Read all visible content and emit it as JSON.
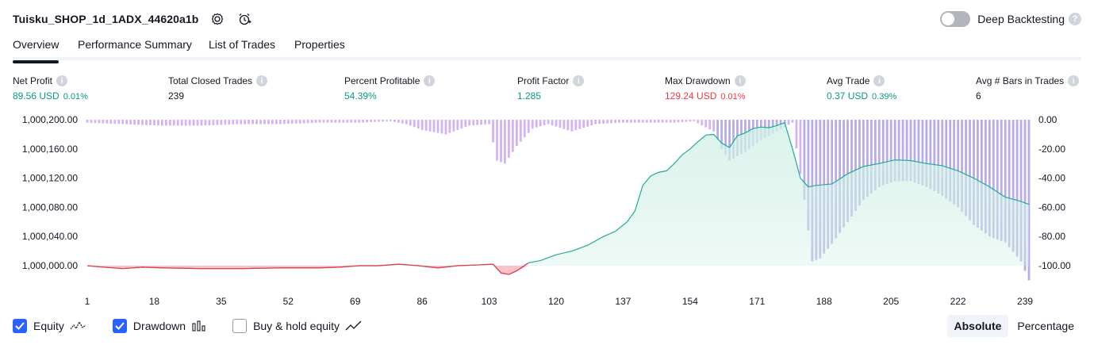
{
  "header": {
    "strategy_title": "Tuisku_SHOP_1d_1ADX_44620a1b",
    "settings_icon": "gear-icon",
    "alert_icon": "alarm-clock-plus-icon",
    "deep_backtesting_label": "Deep Backtesting",
    "deep_backtesting_enabled": false,
    "help_label": "?"
  },
  "tabs": [
    {
      "label": "Overview",
      "active": true
    },
    {
      "label": "Performance Summary",
      "active": false
    },
    {
      "label": "List of Trades",
      "active": false
    },
    {
      "label": "Properties",
      "active": false
    }
  ],
  "metrics": {
    "info_icon": "i",
    "net_profit": {
      "label": "Net Profit",
      "value": "89.56 USD",
      "pct": "0.01%"
    },
    "total_closed_trades": {
      "label": "Total Closed Trades",
      "value": "239"
    },
    "percent_profitable": {
      "label": "Percent Profitable",
      "value": "54.39%"
    },
    "profit_factor": {
      "label": "Profit Factor",
      "value": "1.285"
    },
    "max_drawdown": {
      "label": "Max Drawdown",
      "value": "129.24 USD",
      "pct": "0.01%"
    },
    "avg_trade": {
      "label": "Avg Trade",
      "value": "0.37 USD",
      "pct": "0.39%"
    },
    "avg_bars": {
      "label": "Avg # Bars in Trades",
      "value": "6"
    }
  },
  "colors": {
    "positive": "#089981",
    "negative": "#f23645",
    "equity_line": "#22ab94",
    "equity_fill": "#d1f0e6",
    "loss_fill": "#f7a9b0",
    "drawdown_bar": "#d4b3f2",
    "drawdown_bar_overlap": "#b6acea",
    "accent": "#2962ff"
  },
  "chart_data": {
    "type": "line",
    "x_ticks": [
      "1",
      "18",
      "35",
      "52",
      "69",
      "86",
      "103",
      "120",
      "137",
      "154",
      "171",
      "188",
      "205",
      "222",
      "239"
    ],
    "x_range": [
      1,
      240
    ],
    "left_axis": {
      "ticks": [
        "1,000,200.00",
        "1,000,160.00",
        "1,000,120.00",
        "1,000,080.00",
        "1,000,040.00",
        "1,000,000.00"
      ],
      "range": [
        1000000,
        1000200
      ],
      "baseline": 1000000
    },
    "right_axis": {
      "ticks": [
        "0.00",
        "-20.00",
        "-40.00",
        "-60.00",
        "-80.00",
        "-100.00"
      ],
      "range": [
        -100,
        0
      ]
    },
    "series": [
      {
        "name": "Equity",
        "type": "line",
        "points": [
          [
            1,
            1000000
          ],
          [
            5,
            999998
          ],
          [
            10,
            999996
          ],
          [
            15,
            999998
          ],
          [
            20,
            999997
          ],
          [
            30,
            999996
          ],
          [
            40,
            999996
          ],
          [
            50,
            999997
          ],
          [
            60,
            999997
          ],
          [
            65,
            999998
          ],
          [
            70,
            1000000
          ],
          [
            75,
            1000000
          ],
          [
            80,
            1000002
          ],
          [
            85,
            1000000
          ],
          [
            90,
            999997
          ],
          [
            95,
            1000000
          ],
          [
            100,
            1000001
          ],
          [
            104,
            1000002
          ],
          [
            106,
            999990
          ],
          [
            108,
            999988
          ],
          [
            110,
            999993
          ],
          [
            113,
            1000004
          ],
          [
            116,
            1000007
          ],
          [
            120,
            1000015
          ],
          [
            124,
            1000020
          ],
          [
            128,
            1000028
          ],
          [
            132,
            1000040
          ],
          [
            135,
            1000047
          ],
          [
            138,
            1000060
          ],
          [
            140,
            1000075
          ],
          [
            142,
            1000110
          ],
          [
            144,
            1000123
          ],
          [
            146,
            1000128
          ],
          [
            148,
            1000130
          ],
          [
            150,
            1000140
          ],
          [
            152,
            1000152
          ],
          [
            154,
            1000160
          ],
          [
            156,
            1000170
          ],
          [
            158,
            1000179
          ],
          [
            160,
            1000180
          ],
          [
            162,
            1000168
          ],
          [
            164,
            1000162
          ],
          [
            166,
            1000178
          ],
          [
            168,
            1000182
          ],
          [
            170,
            1000188
          ],
          [
            172,
            1000190
          ],
          [
            174,
            1000189
          ],
          [
            176,
            1000192
          ],
          [
            178,
            1000196
          ],
          [
            180,
            1000160
          ],
          [
            182,
            1000120
          ],
          [
            184,
            1000108
          ],
          [
            186,
            1000110
          ],
          [
            190,
            1000112
          ],
          [
            194,
            1000126
          ],
          [
            198,
            1000136
          ],
          [
            202,
            1000140
          ],
          [
            206,
            1000145
          ],
          [
            210,
            1000144
          ],
          [
            214,
            1000140
          ],
          [
            218,
            1000137
          ],
          [
            222,
            1000130
          ],
          [
            226,
            1000120
          ],
          [
            230,
            1000108
          ],
          [
            234,
            1000094
          ],
          [
            238,
            1000088
          ],
          [
            240,
            1000084
          ]
        ]
      },
      {
        "name": "Drawdown",
        "type": "bar",
        "points": [
          [
            1,
            -2
          ],
          [
            10,
            -3
          ],
          [
            20,
            -4
          ],
          [
            30,
            -4
          ],
          [
            40,
            -3
          ],
          [
            50,
            -3
          ],
          [
            60,
            -2
          ],
          [
            70,
            -2
          ],
          [
            78,
            -1
          ],
          [
            82,
            -3
          ],
          [
            86,
            -7
          ],
          [
            92,
            -10
          ],
          [
            98,
            -4
          ],
          [
            103,
            -3
          ],
          [
            105,
            -28
          ],
          [
            107,
            -30
          ],
          [
            110,
            -18
          ],
          [
            114,
            -6
          ],
          [
            118,
            -3
          ],
          [
            124,
            -8
          ],
          [
            130,
            -3
          ],
          [
            136,
            -2
          ],
          [
            145,
            -2
          ],
          [
            150,
            -2
          ],
          [
            155,
            -1
          ],
          [
            160,
            -8
          ],
          [
            162,
            -20
          ],
          [
            164,
            -28
          ],
          [
            168,
            -22
          ],
          [
            172,
            -14
          ],
          [
            176,
            -8
          ],
          [
            180,
            -2
          ],
          [
            183,
            -55
          ],
          [
            185,
            -97
          ],
          [
            187,
            -95
          ],
          [
            190,
            -85
          ],
          [
            194,
            -70
          ],
          [
            198,
            -55
          ],
          [
            202,
            -46
          ],
          [
            206,
            -42
          ],
          [
            210,
            -42
          ],
          [
            214,
            -46
          ],
          [
            218,
            -52
          ],
          [
            222,
            -60
          ],
          [
            226,
            -72
          ],
          [
            230,
            -80
          ],
          [
            234,
            -84
          ],
          [
            238,
            -97
          ],
          [
            240,
            -110
          ]
        ]
      }
    ]
  },
  "legend": [
    {
      "label": "Equity",
      "checked": true,
      "icon": "equity-line-icon"
    },
    {
      "label": "Drawdown",
      "checked": true,
      "icon": "drawdown-bars-icon"
    },
    {
      "label": "Buy & hold equity",
      "checked": false,
      "icon": "buy-hold-line-icon"
    }
  ],
  "modes": [
    {
      "label": "Absolute",
      "active": true
    },
    {
      "label": "Percentage",
      "active": false
    }
  ]
}
